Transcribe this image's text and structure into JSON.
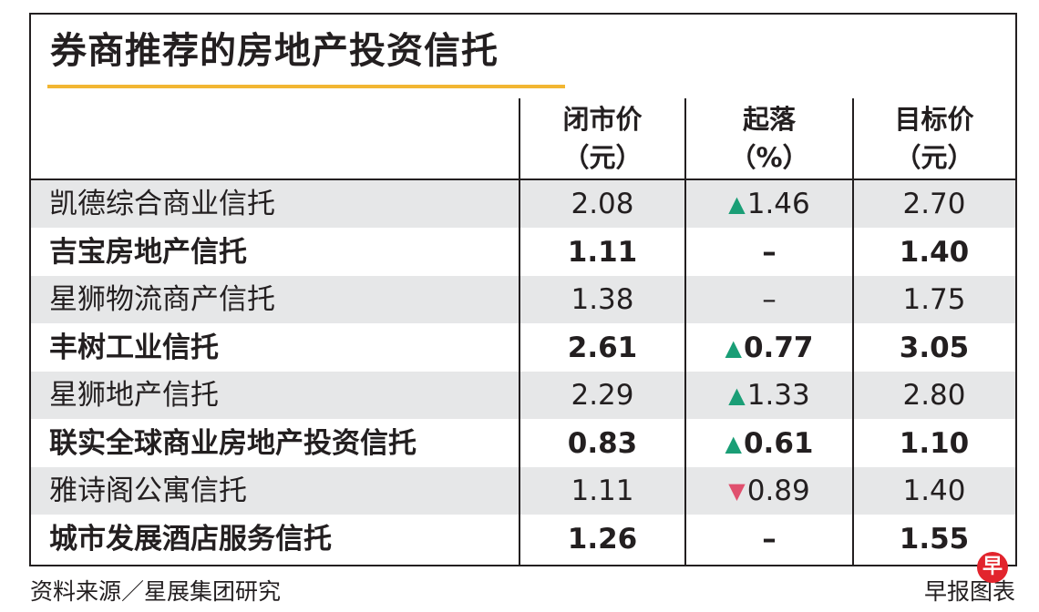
{
  "chart_data": {
    "type": "table",
    "title": "券商推荐的房地产投资信托",
    "columns": [
      {
        "line1": "闭市价",
        "line2": "（元）"
      },
      {
        "line1": "起落",
        "line2": "（%）"
      },
      {
        "line1": "目标价",
        "line2": "（元）"
      }
    ],
    "rows": [
      {
        "name": "凯德综合商业信托",
        "price": "2.08",
        "dir": "up",
        "change": "1.46",
        "target": "2.70"
      },
      {
        "name": "吉宝房地产信托",
        "price": "1.11",
        "dir": "none",
        "change": "–",
        "target": "1.40"
      },
      {
        "name": "星狮物流商产信托",
        "price": "1.38",
        "dir": "none",
        "change": "–",
        "target": "1.75"
      },
      {
        "name": "丰树工业信托",
        "price": "2.61",
        "dir": "up",
        "change": "0.77",
        "target": "3.05"
      },
      {
        "name": "星狮地产信托",
        "price": "2.29",
        "dir": "up",
        "change": "1.33",
        "target": "2.80"
      },
      {
        "name": "联实全球商业房地产投资信托",
        "price": "0.83",
        "dir": "up",
        "change": "0.61",
        "target": "1.10"
      },
      {
        "name": "雅诗阁公寓信托",
        "price": "1.11",
        "dir": "down",
        "change": "0.89",
        "target": "1.40"
      },
      {
        "name": "城市发展酒店服务信托",
        "price": "1.26",
        "dir": "none",
        "change": "–",
        "target": "1.55"
      }
    ],
    "source": "资料来源／星展集团研究",
    "credit": "早报图表",
    "logo_glyph": "早",
    "colors": {
      "accent": "#f2b632",
      "up": "#1a9e76",
      "down": "#e0506e",
      "shade": "#e6e7e8",
      "logo": "#e2242d"
    }
  }
}
